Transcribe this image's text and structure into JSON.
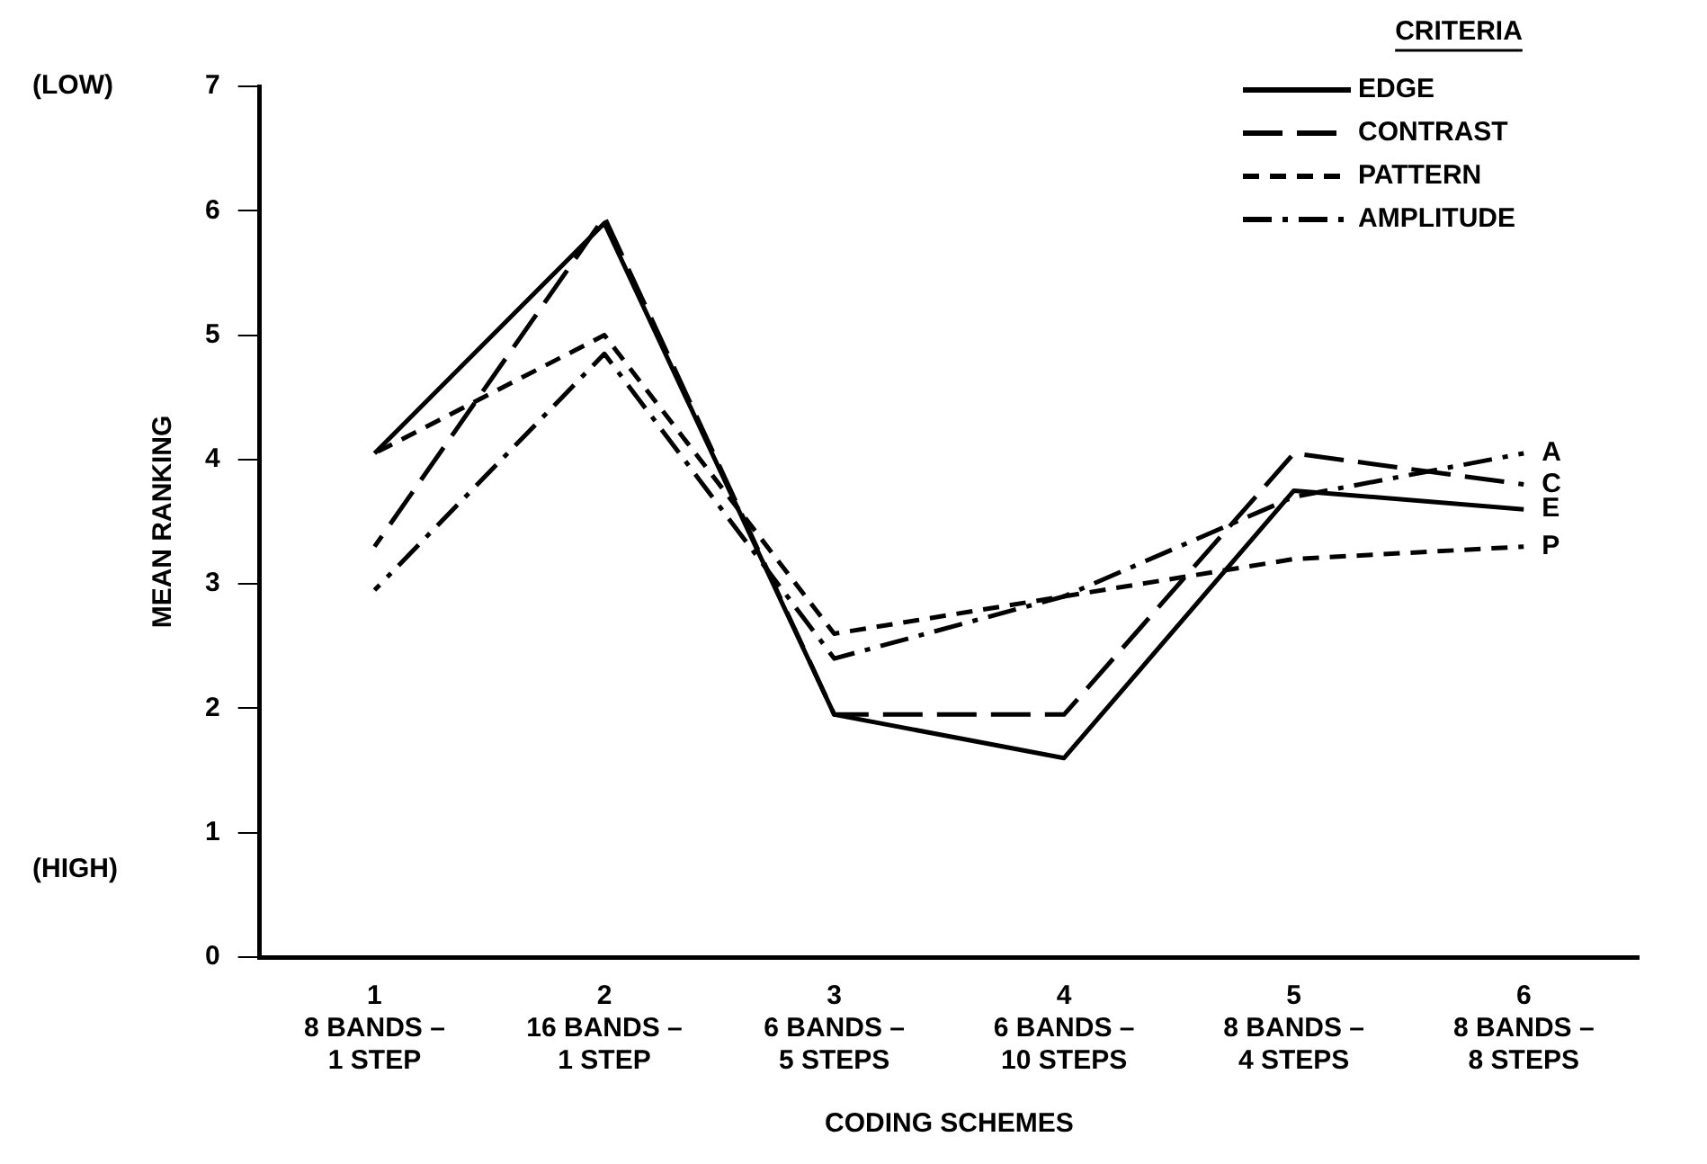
{
  "chart_data": {
    "type": "line",
    "xlabel": "CODING SCHEMES",
    "ylabel": "MEAN RANKING",
    "legend_title": "CRITERIA",
    "legend": "top right",
    "grid": false,
    "marker": "none",
    "categories": [
      "1\n8 BANDS –\n1 STEP",
      "2\n16 BANDS –\n1 STEP",
      "3\n6 BANDS –\n5 STEPS",
      "4\n6 BANDS –\n10 STEPS",
      "5\n8 BANDS –\n4 STEPS",
      "6\n8 BANDS –\n8 STEPS"
    ],
    "ylim": [
      0,
      7
    ],
    "yticks": [
      0,
      1,
      2,
      3,
      4,
      5,
      6,
      7
    ],
    "series": [
      {
        "name": "EDGE",
        "color": "#000000",
        "line_style": "solid",
        "values": [
          4.05,
          5.9,
          1.95,
          1.6,
          3.75,
          3.6
        ]
      },
      {
        "name": "CONTRAST",
        "color": "#000000",
        "line_style": "dashed",
        "values": [
          3.3,
          5.95,
          1.95,
          1.95,
          4.05,
          3.8
        ]
      },
      {
        "name": "PATTERN",
        "color": "#000000",
        "line_style": "dashed",
        "values": [
          4.05,
          5.0,
          2.6,
          2.9,
          3.2,
          3.3
        ]
      },
      {
        "name": "AMPLITUDE",
        "color": "#000000",
        "line_style": "dashdot",
        "values": [
          2.95,
          4.85,
          2.4,
          2.9,
          3.7,
          4.05
        ]
      }
    ],
    "annotations": [
      "(LOW)",
      "(HIGH)",
      {
        "text": "A",
        "x": "6\n8 BANDS –\n8 STEPS",
        "y": 4.05
      },
      {
        "text": "C",
        "x": "6\n8 BANDS –\n8 STEPS",
        "y": 3.8
      },
      {
        "text": "E",
        "x": "6\n8 BANDS –\n8 STEPS",
        "y": 3.6
      },
      {
        "text": "P",
        "x": "6\n8 BANDS –\n8 STEPS",
        "y": 3.3
      }
    ]
  }
}
